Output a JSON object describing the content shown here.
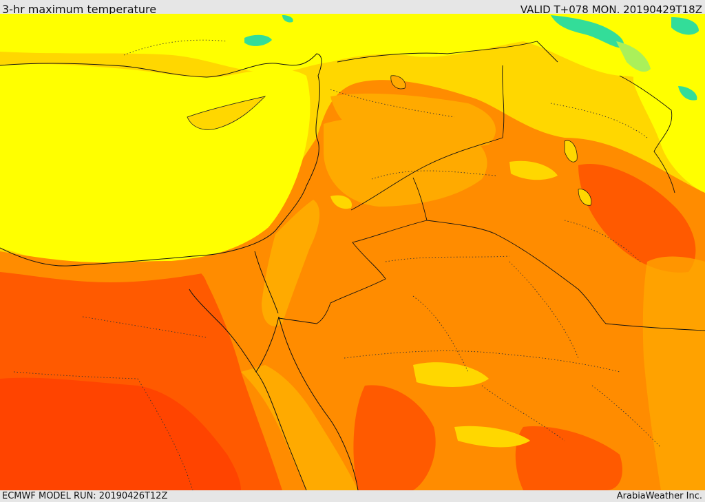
{
  "header": {
    "title": "3-hr maximum temperature",
    "valid_time": "VALID T+078 MON. 20190429T18Z"
  },
  "footer": {
    "model_run": "ECMWF MODEL RUN: 20190426T12Z",
    "credit": "ArabiaWeather Inc."
  },
  "map": {
    "region": "Eastern Mediterranean and Middle East",
    "field": "3-hr maximum temperature",
    "palette": {
      "cool_green": "#33dd99",
      "mild_green": "#aaf05a",
      "yellow": "#ffff00",
      "light_orange": "#ffd700",
      "orange": "#ffaa00",
      "dark_orange": "#ff8c00",
      "red_orange": "#ff5a00",
      "red": "#ff3300"
    }
  }
}
